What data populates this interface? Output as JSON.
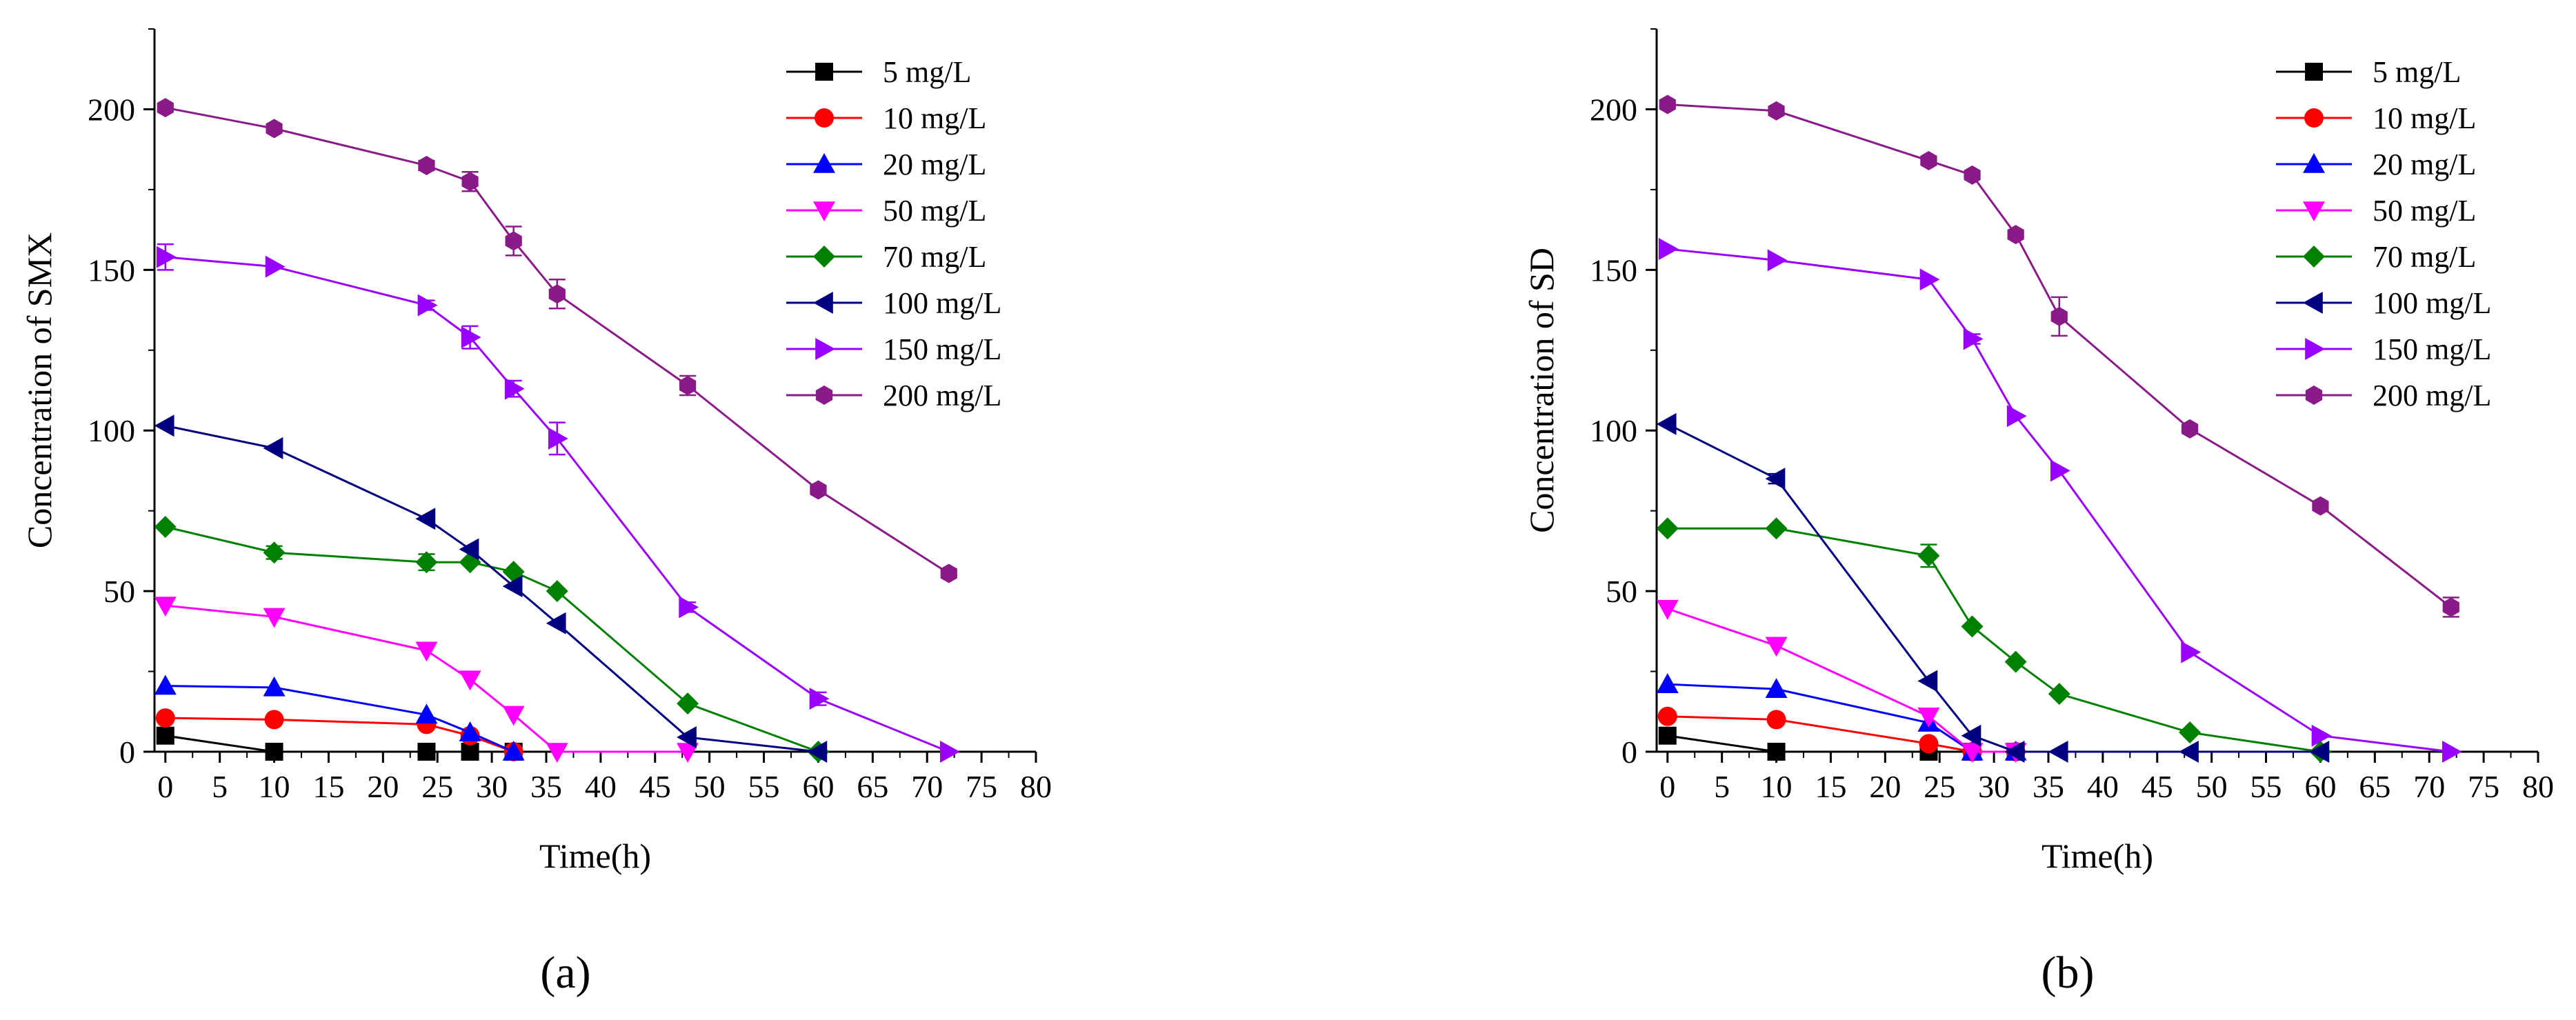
{
  "figure": {
    "panels": [
      "(a)",
      "(b)"
    ]
  },
  "chart_data": [
    {
      "type": "line",
      "panel_label": "(a)",
      "xlabel": "Time(h)",
      "ylabel": "Concentration of  SMX",
      "xlim": [
        -1,
        80
      ],
      "ylim": [
        0,
        225
      ],
      "xticks": [
        0,
        5,
        10,
        15,
        20,
        25,
        30,
        35,
        40,
        45,
        50,
        55,
        60,
        65,
        70,
        75,
        80
      ],
      "yticks": [
        0,
        50,
        100,
        150,
        200
      ],
      "legend_position": "top-right",
      "series": [
        {
          "name": "5 mg/L",
          "color": "#000000",
          "marker": "square",
          "x": [
            0,
            10,
            24,
            28,
            32
          ],
          "y": [
            5,
            0,
            0,
            0,
            0
          ],
          "err": [
            0,
            0,
            0,
            0,
            0
          ]
        },
        {
          "name": "10 mg/L",
          "color": "#ff0000",
          "marker": "circle",
          "x": [
            0,
            10,
            24,
            28,
            32
          ],
          "y": [
            10.5,
            10,
            8.5,
            5,
            0
          ],
          "err": [
            0,
            0,
            0,
            0,
            0
          ]
        },
        {
          "name": "20 mg/L",
          "color": "#0000ff",
          "marker": "triangle-up",
          "x": [
            0,
            10,
            24,
            28,
            32
          ],
          "y": [
            20.5,
            20,
            11.5,
            6,
            0
          ],
          "err": [
            0,
            0,
            0,
            0,
            0
          ]
        },
        {
          "name": "50 mg/L",
          "color": "#ff00ff",
          "marker": "triangle-down",
          "x": [
            0,
            10,
            24,
            28,
            32,
            36,
            48
          ],
          "y": [
            45.5,
            42,
            31.5,
            22.5,
            11.5,
            0,
            0
          ],
          "err": [
            0,
            0,
            0,
            0,
            0,
            0,
            0
          ]
        },
        {
          "name": "70 mg/L",
          "color": "#008000",
          "marker": "diamond",
          "x": [
            0,
            10,
            24,
            28,
            32,
            36,
            48,
            60
          ],
          "y": [
            70,
            62,
            59,
            59,
            56,
            50,
            15,
            0
          ],
          "err": [
            0,
            2,
            2.5,
            0,
            0,
            0,
            0,
            0
          ]
        },
        {
          "name": "100 mg/L",
          "color": "#000080",
          "marker": "triangle-left",
          "x": [
            0,
            10,
            24,
            28,
            32,
            36,
            48,
            60
          ],
          "y": [
            101.5,
            94.5,
            72.5,
            63,
            51.5,
            40,
            4.5,
            0
          ],
          "err": [
            0,
            0,
            0,
            0,
            0,
            0,
            0,
            0
          ]
        },
        {
          "name": "150 mg/L",
          "color": "#9900ff",
          "marker": "triangle-right",
          "x": [
            0,
            10,
            24,
            28,
            32,
            36,
            48,
            60,
            72
          ],
          "y": [
            154,
            151,
            139,
            129,
            113,
            97.5,
            45,
            16.5,
            0
          ],
          "err": [
            4,
            0,
            1.5,
            3.5,
            2.5,
            5,
            1.5,
            2,
            0
          ]
        },
        {
          "name": "200 mg/L",
          "color": "#8b1a89",
          "marker": "hexagon",
          "x": [
            0,
            10,
            24,
            28,
            32,
            36,
            48,
            60,
            72
          ],
          "y": [
            200.5,
            194,
            182.5,
            177.5,
            159,
            142.5,
            114,
            81.5,
            55.5
          ],
          "err": [
            0,
            0,
            1.5,
            3,
            4.5,
            4.5,
            3,
            0,
            0
          ]
        }
      ]
    },
    {
      "type": "line",
      "panel_label": "(b)",
      "xlabel": "Time(h)",
      "ylabel": "Concentration of SD",
      "xlim": [
        -1,
        80
      ],
      "ylim": [
        0,
        225
      ],
      "xticks": [
        0,
        5,
        10,
        15,
        20,
        25,
        30,
        35,
        40,
        45,
        50,
        55,
        60,
        65,
        70,
        75,
        80
      ],
      "yticks": [
        0,
        50,
        100,
        150,
        200
      ],
      "legend_position": "top-right",
      "series": [
        {
          "name": "5 mg/L",
          "color": "#000000",
          "marker": "square",
          "x": [
            0,
            10,
            24,
            28,
            32
          ],
          "y": [
            5,
            0,
            0,
            0,
            0
          ],
          "err": [
            0,
            0,
            0,
            0,
            0
          ]
        },
        {
          "name": "10 mg/L",
          "color": "#ff0000",
          "marker": "circle",
          "x": [
            0,
            10,
            24,
            28,
            32
          ],
          "y": [
            11,
            10,
            2.5,
            0,
            0
          ],
          "err": [
            0,
            0,
            1,
            0,
            0
          ]
        },
        {
          "name": "20 mg/L",
          "color": "#0000ff",
          "marker": "triangle-up",
          "x": [
            0,
            10,
            24,
            28,
            32
          ],
          "y": [
            21,
            19.5,
            9,
            0,
            0
          ],
          "err": [
            0,
            0,
            0,
            0,
            0
          ]
        },
        {
          "name": "50 mg/L",
          "color": "#ff00ff",
          "marker": "triangle-down",
          "x": [
            0,
            10,
            24,
            28,
            32
          ],
          "y": [
            44.5,
            33,
            11,
            0,
            0
          ],
          "err": [
            0,
            0,
            0,
            0,
            0
          ]
        },
        {
          "name": "70 mg/L",
          "color": "#008000",
          "marker": "diamond",
          "x": [
            0,
            10,
            24,
            28,
            32,
            36,
            48,
            60
          ],
          "y": [
            69.5,
            69.5,
            61,
            39,
            28,
            18,
            6,
            0
          ],
          "err": [
            0,
            0,
            3.5,
            0,
            0,
            0,
            0,
            0
          ]
        },
        {
          "name": "100 mg/L",
          "color": "#000080",
          "marker": "triangle-left",
          "x": [
            0,
            10,
            24,
            28,
            32,
            36,
            48,
            60
          ],
          "y": [
            102,
            85,
            22,
            5,
            0,
            0,
            0,
            0
          ],
          "err": [
            0,
            1.5,
            0,
            0,
            0,
            0,
            0,
            0
          ]
        },
        {
          "name": "150 mg/L",
          "color": "#9900ff",
          "marker": "triangle-right",
          "x": [
            0,
            10,
            24,
            28,
            32,
            36,
            48,
            60,
            72
          ],
          "y": [
            156.5,
            153,
            147,
            128.5,
            104.5,
            87.5,
            31,
            5,
            0
          ],
          "err": [
            0,
            0,
            0,
            1.5,
            0,
            0,
            0,
            0,
            0
          ]
        },
        {
          "name": "200 mg/L",
          "color": "#8b1a89",
          "marker": "hexagon",
          "x": [
            0,
            10,
            24,
            28,
            32,
            36,
            48,
            60,
            72
          ],
          "y": [
            201.5,
            199.5,
            184,
            179.5,
            161,
            135.5,
            100.5,
            76.5,
            45
          ],
          "err": [
            0,
            0,
            0,
            0,
            0,
            6,
            0,
            0,
            3
          ]
        }
      ]
    }
  ]
}
